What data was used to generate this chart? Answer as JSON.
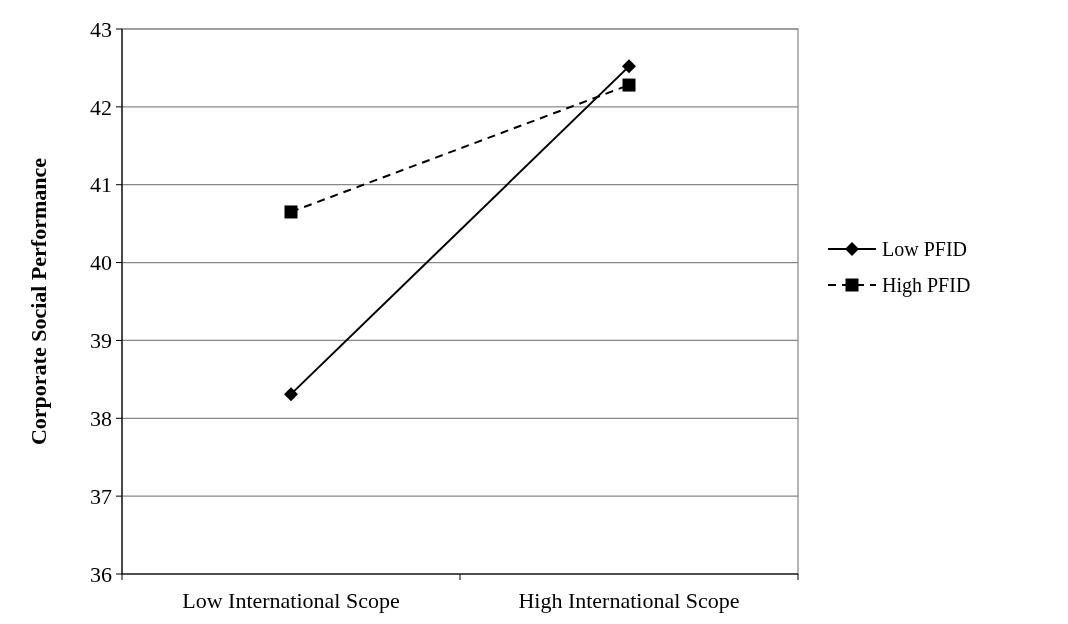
{
  "chart_data": {
    "type": "line",
    "ylabel": "Corporate Social Performance",
    "categories": [
      "Low International Scope",
      "High International Scope"
    ],
    "series": [
      {
        "name": "Low PFID",
        "color": "#000000",
        "values": [
          38.31,
          42.52
        ],
        "marker": "diamond",
        "line_style": "solid"
      },
      {
        "name": "High PFID",
        "color": "#000000",
        "values": [
          40.65,
          42.28
        ],
        "marker": "square",
        "line_style": "dashed"
      }
    ],
    "ylim": [
      36,
      43
    ],
    "yticks": [
      36,
      37,
      38,
      39,
      40,
      41,
      42,
      43
    ],
    "grid": "y",
    "legend": "right"
  }
}
